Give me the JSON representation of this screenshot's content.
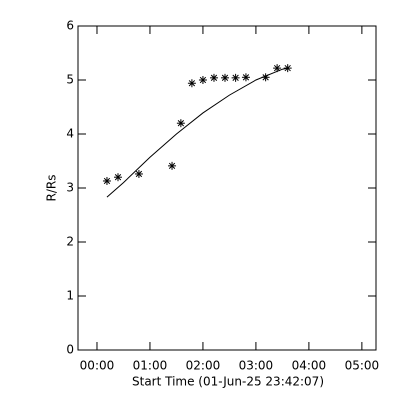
{
  "chart_data": {
    "type": "scatter",
    "xlabel": "Start Time (01-Jun-25 23:42:07)",
    "ylabel": "R/Rs",
    "xlim": [
      -21.5,
      316
    ],
    "ylim": [
      0,
      6
    ],
    "xticks": [
      {
        "value": 0,
        "label": "00:00"
      },
      {
        "value": 60,
        "label": "01:00"
      },
      {
        "value": 120,
        "label": "02:00"
      },
      {
        "value": 180,
        "label": "03:00"
      },
      {
        "value": 240,
        "label": "04:00"
      },
      {
        "value": 300,
        "label": "05:00"
      }
    ],
    "yticks": [
      0,
      1,
      2,
      3,
      4,
      5,
      6
    ],
    "color": "#000000",
    "series": [
      {
        "x": [
          11.3,
          23.8,
          47.5,
          85,
          95,
          107.5,
          120,
          132.5,
          145,
          157,
          168.7,
          191,
          204,
          216
        ],
        "values": [
          3.13,
          3.2,
          3.26,
          3.41,
          4.2,
          4.94,
          5.0,
          5.04,
          5.04,
          5.04,
          5.05,
          5.05,
          5.22,
          5.22
        ]
      },
      {
        "x": [
          11.3,
          30,
          60,
          90,
          120,
          150,
          180,
          210,
          216
        ],
        "values": [
          2.83,
          3.1,
          3.57,
          4.0,
          4.39,
          4.72,
          5.0,
          5.2,
          5.22
        ]
      }
    ]
  }
}
